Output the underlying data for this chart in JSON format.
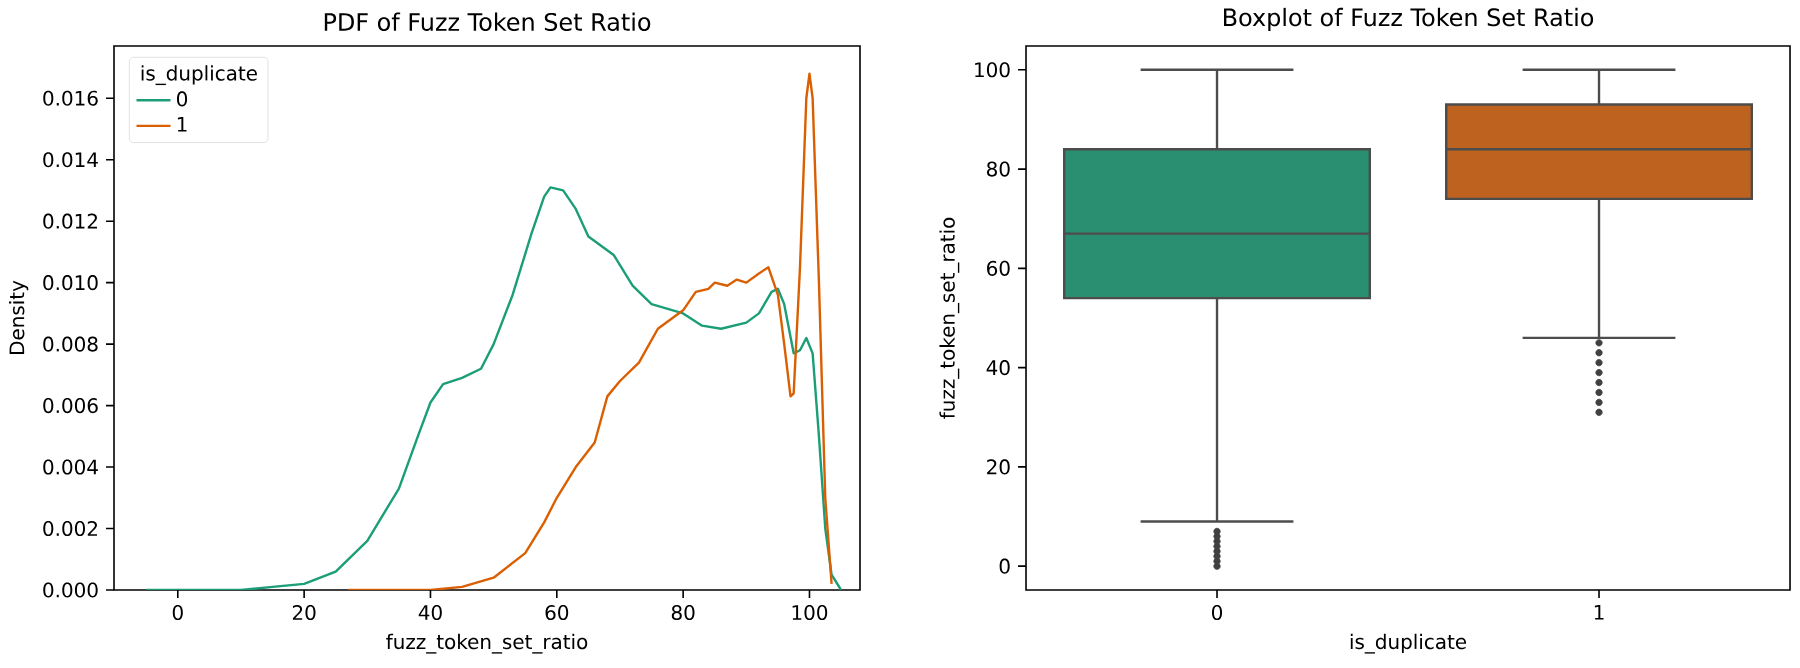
{
  "chart_data": [
    {
      "type": "line",
      "title": "PDF of Fuzz Token Set Ratio",
      "xlabel": "fuzz_token_set_ratio",
      "ylabel": "Density",
      "legend_title": "is_duplicate",
      "legend": "top left",
      "marker": "none",
      "line_style": "solid",
      "xlim": [
        -10.1,
        108
      ],
      "ylim": [
        0,
        0.0177
      ],
      "xticks": [
        0,
        20,
        40,
        60,
        80,
        100
      ],
      "yticks": [
        {
          "value": 0,
          "label": "0.000"
        },
        {
          "value": 0.002,
          "label": "0.002"
        },
        {
          "value": 0.004,
          "label": "0.004"
        },
        {
          "value": 0.006,
          "label": "0.006"
        },
        {
          "value": 0.008,
          "label": "0.008"
        },
        {
          "value": 0.01,
          "label": "0.010"
        },
        {
          "value": 0.012,
          "label": "0.012"
        },
        {
          "value": 0.014,
          "label": "0.014"
        },
        {
          "value": 0.016,
          "label": "0.016"
        }
      ],
      "series": [
        {
          "name": "0",
          "color": "#1b9e77",
          "x": [
            -5,
            10,
            15,
            20,
            25,
            30,
            35,
            38,
            40,
            42,
            45,
            48,
            50,
            53,
            56,
            58,
            59,
            61,
            63,
            65,
            67,
            69,
            72,
            75,
            80,
            83,
            86,
            90,
            92,
            94,
            95,
            96,
            97.5,
            98.5,
            99.5,
            100.5,
            101.5,
            102.5,
            103.5,
            105
          ],
          "values": [
            0,
            0,
            0.0001,
            0.0002,
            0.0006,
            0.0016,
            0.0033,
            0.005,
            0.0061,
            0.0067,
            0.0069,
            0.0072,
            0.008,
            0.0096,
            0.0116,
            0.0128,
            0.0131,
            0.013,
            0.0124,
            0.0115,
            0.0112,
            0.0109,
            0.0099,
            0.0093,
            0.009,
            0.0086,
            0.0085,
            0.0087,
            0.009,
            0.0097,
            0.0098,
            0.0093,
            0.0077,
            0.0078,
            0.0082,
            0.0077,
            0.005,
            0.002,
            0.0005,
            0
          ]
        },
        {
          "name": "1",
          "color": "#d95f02",
          "x": [
            27,
            40,
            45,
            50,
            55,
            58,
            60,
            63,
            66,
            68,
            70,
            73,
            76,
            80,
            82,
            84,
            85,
            87,
            88.5,
            90,
            92,
            93.5,
            95,
            96,
            97,
            97.5,
            98.5,
            99.5,
            100,
            100.5,
            101.5,
            102.5,
            103.5
          ],
          "values": [
            0,
            0,
            0.0001,
            0.0004,
            0.0012,
            0.0022,
            0.003,
            0.004,
            0.0048,
            0.0063,
            0.0068,
            0.0074,
            0.0085,
            0.0091,
            0.0097,
            0.0098,
            0.01,
            0.0099,
            0.0101,
            0.01,
            0.0103,
            0.0105,
            0.0096,
            0.008,
            0.0063,
            0.0064,
            0.0105,
            0.016,
            0.0168,
            0.016,
            0.01,
            0.003,
            0.0002
          ]
        }
      ]
    },
    {
      "type": "box",
      "title": "Boxplot of Fuzz Token Set Ratio",
      "xlabel": "is_duplicate",
      "ylabel": "fuzz_token_set_ratio",
      "categories": [
        "0",
        "1"
      ],
      "colors": [
        "#2a8f71",
        "#bd621f"
      ],
      "ylim": [
        -4.8,
        104.8
      ],
      "yticks": [
        0,
        20,
        40,
        60,
        80,
        100
      ],
      "boxes": [
        {
          "low": 9,
          "q1": 54,
          "median": 67,
          "q3": 84,
          "high": 100,
          "outliers": [
            0,
            1,
            2,
            3,
            4,
            5,
            6,
            7
          ]
        },
        {
          "low": 46,
          "q1": 74,
          "median": 84,
          "q3": 93,
          "high": 100,
          "outliers": [
            31,
            33,
            35,
            37,
            39,
            41,
            43,
            45
          ]
        }
      ]
    }
  ]
}
